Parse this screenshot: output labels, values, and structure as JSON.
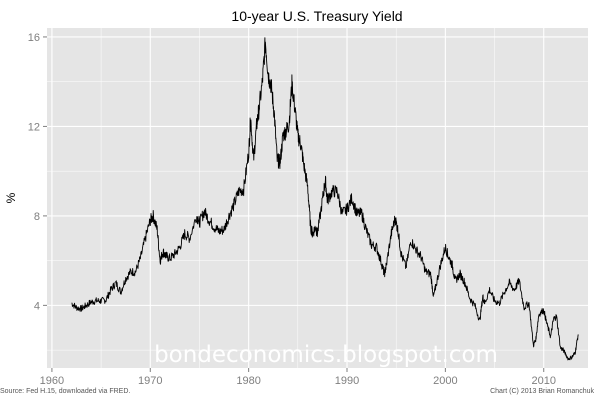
{
  "chart_data": {
    "type": "line",
    "title": "10-year U.S. Treasury Yield",
    "xlabel": "",
    "ylabel": "%",
    "xlim": [
      1959.5,
      2014.5
    ],
    "ylim": [
      1.2,
      16.4
    ],
    "x_ticks": [
      1960,
      1970,
      1980,
      1990,
      2000,
      2010
    ],
    "y_ticks": [
      4,
      8,
      12,
      16
    ],
    "grid": true,
    "legend": "none",
    "colors": {
      "panel": "#e5e5e5",
      "grid": "#ffffff",
      "line": "#000000"
    },
    "series": [
      {
        "x": [
          1962.0,
          1962.5,
          1963.0,
          1963.5,
          1964.0,
          1964.5,
          1965.0,
          1965.5,
          1966.0,
          1966.5,
          1967.0,
          1967.5,
          1968.0,
          1968.5,
          1969.0,
          1969.5,
          1970.0,
          1970.3,
          1970.7,
          1971.0,
          1971.3,
          1971.6,
          1972.0,
          1972.5,
          1973.0,
          1973.5,
          1974.0,
          1974.7,
          1975.0,
          1975.5,
          1976.0,
          1976.5,
          1977.0,
          1977.5,
          1978.0,
          1978.5,
          1979.0,
          1979.5,
          1980.0,
          1980.2,
          1980.5,
          1980.8,
          1981.0,
          1981.4,
          1981.7,
          1982.0,
          1982.3,
          1982.6,
          1982.9,
          1983.2,
          1983.5,
          1983.8,
          1984.1,
          1984.4,
          1984.7,
          1985.0,
          1985.3,
          1985.6,
          1986.0,
          1986.3,
          1986.5,
          1986.8,
          1987.0,
          1987.5,
          1987.8,
          1988.0,
          1988.5,
          1989.0,
          1989.5,
          1990.0,
          1990.5,
          1991.0,
          1991.5,
          1992.0,
          1992.5,
          1993.0,
          1993.5,
          1993.8,
          1994.0,
          1994.5,
          1994.9,
          1995.2,
          1995.5,
          1996.0,
          1996.5,
          1997.0,
          1997.5,
          1998.0,
          1998.5,
          1998.8,
          1999.0,
          1999.5,
          2000.0,
          2000.3,
          2000.7,
          2001.0,
          2001.5,
          2002.0,
          2002.5,
          2003.0,
          2003.5,
          2003.8,
          2004.0,
          2004.5,
          2005.0,
          2005.5,
          2006.0,
          2006.5,
          2007.0,
          2007.5,
          2008.0,
          2008.5,
          2008.95,
          2009.2,
          2009.5,
          2010.0,
          2010.3,
          2010.7,
          2011.0,
          2011.3,
          2011.7,
          2012.0,
          2012.5,
          2012.9,
          2013.2,
          2013.5
        ],
        "values": [
          4.1,
          3.9,
          3.85,
          4.0,
          4.15,
          4.2,
          4.2,
          4.25,
          4.7,
          5.0,
          4.6,
          5.2,
          5.5,
          5.5,
          6.1,
          7.0,
          7.8,
          8.0,
          7.4,
          6.0,
          6.4,
          6.2,
          6.1,
          6.3,
          6.6,
          7.2,
          7.0,
          8.0,
          7.7,
          8.2,
          7.8,
          7.5,
          7.3,
          7.4,
          8.0,
          8.5,
          9.1,
          9.2,
          10.8,
          12.4,
          10.5,
          12.0,
          12.6,
          14.0,
          15.8,
          14.3,
          13.8,
          12.6,
          10.5,
          10.4,
          11.6,
          11.8,
          12.1,
          13.9,
          12.8,
          11.6,
          11.2,
          10.3,
          9.3,
          7.5,
          7.2,
          7.5,
          7.2,
          8.7,
          9.6,
          8.7,
          9.1,
          9.1,
          8.1,
          8.3,
          8.8,
          8.1,
          8.1,
          7.3,
          6.7,
          6.6,
          5.9,
          5.4,
          5.8,
          7.2,
          7.9,
          7.3,
          6.3,
          5.7,
          6.9,
          6.5,
          6.2,
          5.5,
          5.4,
          4.4,
          4.8,
          5.8,
          6.6,
          6.2,
          5.8,
          5.1,
          5.4,
          5.0,
          4.3,
          4.0,
          3.3,
          4.4,
          4.1,
          4.7,
          4.2,
          4.1,
          4.6,
          5.0,
          4.7,
          5.1,
          3.9,
          4.1,
          2.2,
          2.5,
          3.6,
          3.8,
          3.2,
          2.6,
          3.4,
          3.5,
          2.1,
          2.0,
          1.6,
          1.7,
          1.9,
          2.7
        ]
      }
    ]
  },
  "watermark": "bondeconomics.blogspot.com",
  "source_note": "Source: Fed H.15, downloaded via FRED.",
  "credit_note": "Chart (C) 2013 Brian Romanchuk"
}
